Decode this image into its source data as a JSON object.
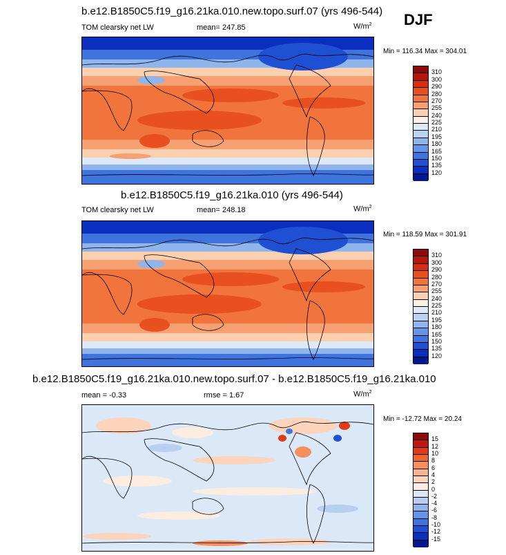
{
  "season": "DJF",
  "panels": [
    {
      "title": "b.e12.B1850C5.f19_g16.21ka.010.new.topo.surf.07 (yrs 496-544)",
      "variable": "TOM clearsky net LW",
      "stat1": "mean= 247.85",
      "stat2": "",
      "units": "W/m",
      "units_sup": "2",
      "minmax": "Min = 116.34 Max = 304.01"
    },
    {
      "title": "b.e12.B1850C5.f19_g16.21ka.010 (yrs 496-544)",
      "variable": "TOM clearsky net LW",
      "stat1": "mean= 248.18",
      "stat2": "",
      "units": "W/m",
      "units_sup": "2",
      "minmax": "Min = 118.59 Max = 301.91"
    },
    {
      "title": "b.e12.B1850C5.f19_g16.21ka.010.new.topo.surf.07 - b.e12.B1850C5.f19_g16.21ka.010",
      "variable": "",
      "stat1": "mean =  -0.33",
      "stat2": "rmse =   1.67",
      "units": "W/m",
      "units_sup": "2",
      "minmax": "Min = -12.72 Max =  20.24"
    }
  ],
  "chart_data": [
    {
      "type": "heatmap",
      "title": "b.e12.B1850C5.f19_g16.21ka.010.new.topo.surf.07 (yrs 496-544)",
      "subtitle": "TOM clearsky net LW",
      "units": "W/m2",
      "mean": 247.85,
      "min": 116.34,
      "max": 304.01,
      "colorbar_levels": [
        310,
        300,
        290,
        280,
        270,
        255,
        240,
        225,
        210,
        195,
        180,
        165,
        150,
        135,
        120
      ],
      "colorbar_colors": [
        "#8c0a0a",
        "#b5160d",
        "#d62c12",
        "#e8501f",
        "#f0743c",
        "#f7a172",
        "#fbd0b1",
        "#fdf0e6",
        "#dde9f8",
        "#b9d2f2",
        "#8fb5ec",
        "#6495e6",
        "#3f73de",
        "#1f4fd2",
        "#0a2fbf",
        "#04178f"
      ]
    },
    {
      "type": "heatmap",
      "title": "b.e12.B1850C5.f19_g16.21ka.010 (yrs 496-544)",
      "subtitle": "TOM clearsky net LW",
      "units": "W/m2",
      "mean": 248.18,
      "min": 118.59,
      "max": 301.91,
      "colorbar_levels": [
        310,
        300,
        290,
        280,
        270,
        255,
        240,
        225,
        210,
        195,
        180,
        165,
        150,
        135,
        120
      ],
      "colorbar_colors": [
        "#8c0a0a",
        "#b5160d",
        "#d62c12",
        "#e8501f",
        "#f0743c",
        "#f7a172",
        "#fbd0b1",
        "#fdf0e6",
        "#dde9f8",
        "#b9d2f2",
        "#8fb5ec",
        "#6495e6",
        "#3f73de",
        "#1f4fd2",
        "#0a2fbf",
        "#04178f"
      ]
    },
    {
      "type": "heatmap",
      "title": "b.e12.B1850C5.f19_g16.21ka.010.new.topo.surf.07 - b.e12.B1850C5.f19_g16.21ka.010",
      "units": "W/m2",
      "mean": -0.33,
      "rmse": 1.67,
      "min": -12.72,
      "max": 20.24,
      "colorbar_levels": [
        15,
        12,
        10,
        8,
        6,
        4,
        2,
        0,
        -2,
        -4,
        -6,
        -8,
        -10,
        -12,
        -15
      ],
      "colorbar_colors": [
        "#8c0a0a",
        "#c0180e",
        "#e03a18",
        "#ef6432",
        "#f68f5e",
        "#f9b48e",
        "#fcd3bb",
        "#fdece0",
        "#dbe8f8",
        "#b7d0f2",
        "#8fb5ec",
        "#6495e6",
        "#3f73de",
        "#1f4fd2",
        "#0a2fbf",
        "#04178f"
      ]
    }
  ]
}
